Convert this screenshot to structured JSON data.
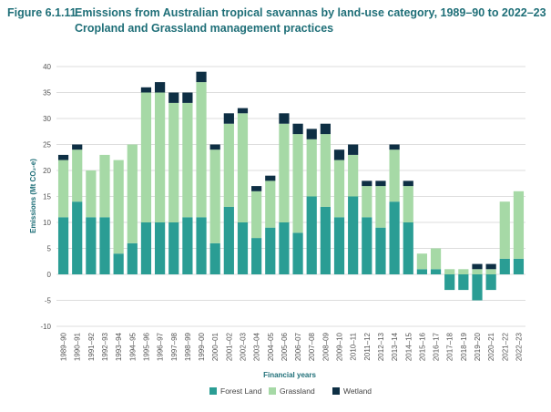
{
  "figure": {
    "number": "Figure 6.1.11",
    "title_line1": "Emissions from Australian tropical savannas by land-use category, 1989–90 to 2022–23",
    "title_line2": "Cropland and Grassland management practices"
  },
  "colors": {
    "forest_land": "#2a9d94",
    "grassland": "#a6d9a6",
    "wetland": "#0e2f44",
    "grid": "#dddddd",
    "tick": "#555555",
    "axis_title": "#1f6f78"
  },
  "chart_data": {
    "type": "bar",
    "stacked": true,
    "title": "Emissions from Australian tropical savannas by land-use category, 1989–90 to 2022–23",
    "subtitle": "Cropland and Grassland management practices",
    "xlabel": "Financial years",
    "ylabel": "Emissions (Mt CO₂-e)",
    "ylim": [
      -10,
      40
    ],
    "yticks": [
      -10,
      -5,
      0,
      5,
      10,
      15,
      20,
      25,
      30,
      35,
      40
    ],
    "grid": true,
    "legend_position": "bottom",
    "categories": [
      "1989–90",
      "1990–91",
      "1991–92",
      "1992–93",
      "1993–94",
      "1994–95",
      "1995–96",
      "1996–97",
      "1997–98",
      "1998–99",
      "1999–00",
      "2000–01",
      "2001–02",
      "2002–03",
      "2003–04",
      "2004–05",
      "2005–06",
      "2006–07",
      "2007–08",
      "2008–09",
      "2009–10",
      "2010–11",
      "2011–12",
      "2012–13",
      "2013–14",
      "2014–15",
      "2015–16",
      "2016–17",
      "2017–18",
      "2018–19",
      "2019–20",
      "2020–21",
      "2021–22",
      "2022–23"
    ],
    "series": [
      {
        "name": "Forest Land",
        "values": [
          11,
          14,
          11,
          11,
          4,
          6,
          10,
          10,
          10,
          11,
          11,
          6,
          13,
          10,
          7,
          9,
          10,
          8,
          15,
          13,
          11,
          15,
          11,
          9,
          14,
          10,
          1,
          1,
          -3,
          -3,
          -5,
          -3,
          3,
          3
        ]
      },
      {
        "name": "Grassland",
        "values": [
          11,
          10,
          9,
          12,
          18,
          19,
          25,
          25,
          23,
          22,
          26,
          18,
          16,
          21,
          9,
          9,
          19,
          19,
          11,
          14,
          11,
          8,
          6,
          8,
          10,
          7,
          3,
          4,
          1,
          1,
          1,
          1,
          11,
          13
        ]
      },
      {
        "name": "Wetland",
        "values": [
          1,
          1,
          0,
          0,
          0,
          0,
          1,
          2,
          2,
          2,
          2,
          1,
          2,
          1,
          1,
          1,
          2,
          2,
          2,
          2,
          2,
          2,
          1,
          1,
          1,
          1,
          0,
          0,
          0,
          0,
          1,
          1,
          0,
          0
        ]
      }
    ]
  }
}
